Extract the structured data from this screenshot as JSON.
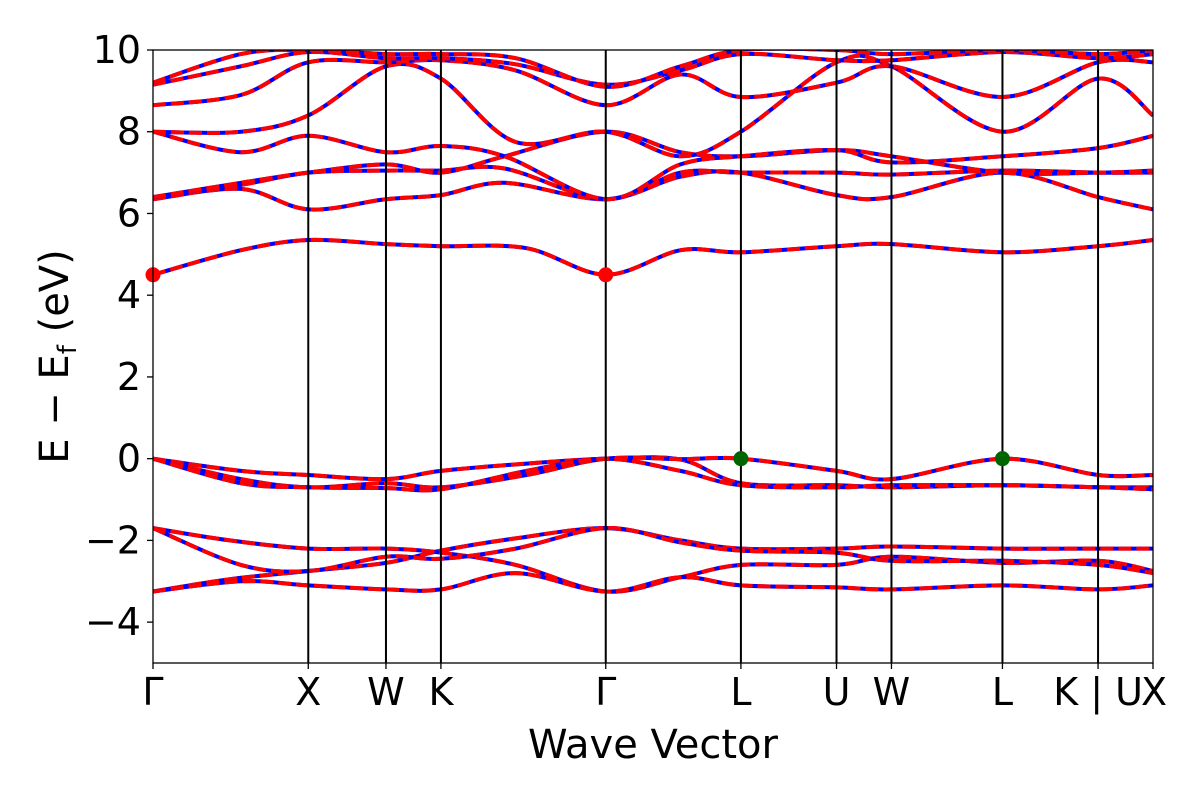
{
  "chart_data": {
    "type": "line",
    "title": "",
    "xlabel": "Wave Vector",
    "ylabel_main": "E − E",
    "ylabel_sub": "f",
    "ylabel_unit": " (eV)",
    "ylim": [
      -5,
      10
    ],
    "xlim": [
      0,
      9.1
    ],
    "yticks": [
      {
        "value": -4,
        "label": "−4"
      },
      {
        "value": -2,
        "label": "−2"
      },
      {
        "value": 0,
        "label": "0"
      },
      {
        "value": 2,
        "label": "2"
      },
      {
        "value": 4,
        "label": "4"
      },
      {
        "value": 6,
        "label": "6"
      },
      {
        "value": 8,
        "label": "8"
      },
      {
        "value": 10,
        "label": "10"
      }
    ],
    "kpoints": [
      {
        "label": "Γ",
        "x": 0.0
      },
      {
        "label": "X",
        "x": 1.413
      },
      {
        "label": "W",
        "x": 2.12
      },
      {
        "label": "K",
        "x": 2.62
      },
      {
        "label": "Γ",
        "x": 4.12
      },
      {
        "label": "L",
        "x": 5.35
      },
      {
        "label": "U",
        "x": 6.22
      },
      {
        "label": "W",
        "x": 6.72
      },
      {
        "label": "L",
        "x": 7.73
      },
      {
        "label": "K | U",
        "x": 8.6
      },
      {
        "label": "X",
        "x": 9.1
      }
    ],
    "series_styles": [
      {
        "color": "#0000ff",
        "dash": "none"
      },
      {
        "color": "#ff0000",
        "dash": "dashed"
      }
    ],
    "bands": [
      [
        [
          0,
          -3.25
        ],
        [
          0.7,
          -2.95
        ],
        [
          1.413,
          -2.75
        ],
        [
          2.12,
          -2.55
        ],
        [
          2.62,
          -2.25
        ],
        [
          3.3,
          -1.95
        ],
        [
          4.12,
          -1.7
        ],
        [
          4.8,
          -2.0
        ],
        [
          5.35,
          -2.2
        ],
        [
          6.22,
          -2.2
        ],
        [
          6.72,
          -2.15
        ],
        [
          7.73,
          -2.2
        ],
        [
          8.6,
          -2.2
        ],
        [
          9.1,
          -2.2
        ]
      ],
      [
        [
          0,
          -1.7
        ],
        [
          0.7,
          -2.0
        ],
        [
          1.413,
          -2.2
        ],
        [
          2.12,
          -2.2
        ],
        [
          2.62,
          -2.3
        ],
        [
          3.3,
          -2.6
        ],
        [
          4.12,
          -3.25
        ],
        [
          4.8,
          -2.9
        ],
        [
          5.35,
          -2.6
        ],
        [
          6.22,
          -2.6
        ],
        [
          6.72,
          -2.4
        ],
        [
          7.73,
          -2.55
        ],
        [
          8.6,
          -2.5
        ],
        [
          9.1,
          -2.75
        ]
      ],
      [
        [
          0,
          -1.7
        ],
        [
          0.8,
          -2.6
        ],
        [
          1.413,
          -2.75
        ],
        [
          2.12,
          -2.4
        ],
        [
          2.62,
          -2.45
        ],
        [
          3.3,
          -2.2
        ],
        [
          4.12,
          -1.7
        ],
        [
          4.8,
          -2.05
        ],
        [
          5.35,
          -2.25
        ],
        [
          6.22,
          -2.3
        ],
        [
          6.72,
          -2.5
        ],
        [
          7.73,
          -2.5
        ],
        [
          8.6,
          -2.6
        ],
        [
          9.1,
          -2.8
        ]
      ],
      [
        [
          0,
          -3.25
        ],
        [
          0.8,
          -3.0
        ],
        [
          1.413,
          -3.1
        ],
        [
          2.12,
          -3.2
        ],
        [
          2.62,
          -3.2
        ],
        [
          3.3,
          -2.8
        ],
        [
          4.12,
          -3.25
        ],
        [
          4.8,
          -2.9
        ],
        [
          5.35,
          -3.1
        ],
        [
          6.22,
          -3.15
        ],
        [
          6.72,
          -3.2
        ],
        [
          7.73,
          -3.1
        ],
        [
          8.6,
          -3.2
        ],
        [
          9.1,
          -3.1
        ]
      ],
      [
        [
          0,
          0.0
        ],
        [
          0.8,
          -0.3
        ],
        [
          1.413,
          -0.4
        ],
        [
          2.12,
          -0.5
        ],
        [
          2.62,
          -0.3
        ],
        [
          3.4,
          -0.12
        ],
        [
          4.12,
          0.0
        ],
        [
          4.8,
          -0.02
        ],
        [
          5.35,
          -0.6
        ],
        [
          6.22,
          -0.65
        ],
        [
          6.72,
          -0.7
        ],
        [
          7.73,
          -0.65
        ],
        [
          8.6,
          -0.7
        ],
        [
          9.1,
          -0.7
        ]
      ],
      [
        [
          0,
          0.0
        ],
        [
          0.8,
          -0.5
        ],
        [
          1.413,
          -0.7
        ],
        [
          2.12,
          -0.6
        ],
        [
          2.62,
          -0.7
        ],
        [
          3.4,
          -0.4
        ],
        [
          4.12,
          0.0
        ],
        [
          4.8,
          -0.01
        ],
        [
          5.35,
          0.0
        ],
        [
          6.22,
          -0.3
        ],
        [
          6.72,
          -0.5
        ],
        [
          7.73,
          0.0
        ],
        [
          8.6,
          -0.4
        ],
        [
          9.1,
          -0.4
        ]
      ],
      [
        [
          0,
          0.0
        ],
        [
          0.8,
          -0.6
        ],
        [
          1.413,
          -0.7
        ],
        [
          2.12,
          -0.72
        ],
        [
          2.62,
          -0.75
        ],
        [
          3.4,
          -0.3
        ],
        [
          4.12,
          0.0
        ],
        [
          4.8,
          -0.3
        ],
        [
          5.35,
          -0.65
        ],
        [
          6.22,
          -0.7
        ],
        [
          6.72,
          -0.65
        ],
        [
          7.73,
          -0.65
        ],
        [
          8.6,
          -0.7
        ],
        [
          9.1,
          -0.75
        ]
      ],
      [
        [
          0,
          4.5
        ],
        [
          0.8,
          5.1
        ],
        [
          1.413,
          5.35
        ],
        [
          2.12,
          5.25
        ],
        [
          2.62,
          5.2
        ],
        [
          3.4,
          5.15
        ],
        [
          4.12,
          4.5
        ],
        [
          4.8,
          5.1
        ],
        [
          5.35,
          5.05
        ],
        [
          6.22,
          5.2
        ],
        [
          6.72,
          5.25
        ],
        [
          7.73,
          5.05
        ],
        [
          8.6,
          5.2
        ],
        [
          9.1,
          5.35
        ]
      ],
      [
        [
          0,
          6.35
        ],
        [
          0.8,
          6.6
        ],
        [
          1.413,
          6.1
        ],
        [
          2.12,
          6.35
        ],
        [
          2.62,
          6.45
        ],
        [
          3.2,
          6.75
        ],
        [
          4.12,
          6.35
        ],
        [
          4.8,
          6.9
        ],
        [
          5.35,
          7.0
        ],
        [
          6.22,
          6.45
        ],
        [
          6.72,
          6.4
        ],
        [
          7.73,
          7.0
        ],
        [
          8.6,
          6.4
        ],
        [
          9.1,
          6.1
        ]
      ],
      [
        [
          0,
          6.4
        ],
        [
          0.8,
          6.7
        ],
        [
          1.413,
          7.0
        ],
        [
          2.12,
          7.05
        ],
        [
          2.62,
          7.05
        ],
        [
          3.2,
          7.1
        ],
        [
          4.12,
          6.35
        ],
        [
          4.8,
          7.0
        ],
        [
          5.35,
          7.0
        ],
        [
          6.22,
          7.0
        ],
        [
          6.72,
          6.95
        ],
        [
          7.73,
          7.05
        ],
        [
          8.6,
          7.0
        ],
        [
          9.1,
          7.0
        ]
      ],
      [
        [
          0,
          6.4
        ],
        [
          0.8,
          6.75
        ],
        [
          1.413,
          7.0
        ],
        [
          2.12,
          7.2
        ],
        [
          2.62,
          7.0
        ],
        [
          3.2,
          7.4
        ],
        [
          4.12,
          8.0
        ],
        [
          4.8,
          7.5
        ],
        [
          5.35,
          7.4
        ],
        [
          6.22,
          7.55
        ],
        [
          6.72,
          7.4
        ],
        [
          7.73,
          7.0
        ],
        [
          8.6,
          7.0
        ],
        [
          9.1,
          7.05
        ]
      ],
      [
        [
          0,
          8.0
        ],
        [
          0.8,
          7.5
        ],
        [
          1.413,
          7.9
        ],
        [
          2.12,
          7.5
        ],
        [
          2.62,
          7.65
        ],
        [
          3.2,
          7.4
        ],
        [
          4.12,
          6.35
        ],
        [
          4.8,
          7.2
        ],
        [
          5.35,
          7.4
        ],
        [
          6.22,
          7.55
        ],
        [
          6.72,
          7.25
        ],
        [
          7.73,
          7.4
        ],
        [
          8.6,
          7.6
        ],
        [
          9.1,
          7.9
        ]
      ],
      [
        [
          0,
          8.0
        ],
        [
          0.8,
          8.0
        ],
        [
          1.413,
          8.4
        ],
        [
          2.12,
          9.6
        ],
        [
          2.62,
          9.3
        ],
        [
          3.3,
          7.75
        ],
        [
          4.12,
          8.0
        ],
        [
          4.8,
          7.4
        ],
        [
          5.35,
          8.0
        ],
        [
          6.22,
          9.7
        ],
        [
          6.72,
          9.6
        ],
        [
          7.73,
          8.0
        ],
        [
          8.6,
          9.3
        ],
        [
          9.1,
          8.4
        ]
      ],
      [
        [
          0,
          8.65
        ],
        [
          0.8,
          8.9
        ],
        [
          1.413,
          9.7
        ],
        [
          2.12,
          9.7
        ],
        [
          2.62,
          9.75
        ],
        [
          3.3,
          9.5
        ],
        [
          4.12,
          8.65
        ],
        [
          4.8,
          9.4
        ],
        [
          5.35,
          8.85
        ],
        [
          6.22,
          9.2
        ],
        [
          6.72,
          9.6
        ],
        [
          7.73,
          8.85
        ],
        [
          8.6,
          9.7
        ],
        [
          9.1,
          9.7
        ]
      ],
      [
        [
          0,
          9.15
        ],
        [
          0.8,
          9.6
        ],
        [
          1.413,
          9.95
        ],
        [
          2.12,
          9.8
        ],
        [
          2.62,
          9.8
        ],
        [
          3.3,
          9.65
        ],
        [
          4.12,
          9.15
        ],
        [
          4.8,
          9.5
        ],
        [
          5.35,
          9.9
        ],
        [
          6.22,
          9.75
        ],
        [
          6.72,
          9.75
        ],
        [
          7.73,
          9.95
        ],
        [
          8.6,
          9.8
        ],
        [
          9.1,
          9.9
        ]
      ],
      [
        [
          0,
          9.2
        ],
        [
          0.8,
          9.9
        ],
        [
          1.413,
          10.0
        ],
        [
          2.12,
          9.9
        ],
        [
          2.62,
          9.9
        ],
        [
          3.3,
          9.8
        ],
        [
          4.12,
          9.1
        ],
        [
          4.8,
          9.6
        ],
        [
          5.35,
          10.0
        ],
        [
          6.22,
          10.0
        ],
        [
          6.72,
          9.9
        ],
        [
          7.73,
          10.0
        ],
        [
          8.6,
          9.9
        ],
        [
          9.1,
          10.0
        ]
      ]
    ],
    "markers": [
      {
        "x": 0.0,
        "y": 4.5,
        "color": "#ff0000"
      },
      {
        "x": 4.12,
        "y": 4.5,
        "color": "#ff0000"
      },
      {
        "x": 5.35,
        "y": 0.0,
        "color": "#006400"
      },
      {
        "x": 7.73,
        "y": 0.0,
        "color": "#006400"
      }
    ]
  }
}
